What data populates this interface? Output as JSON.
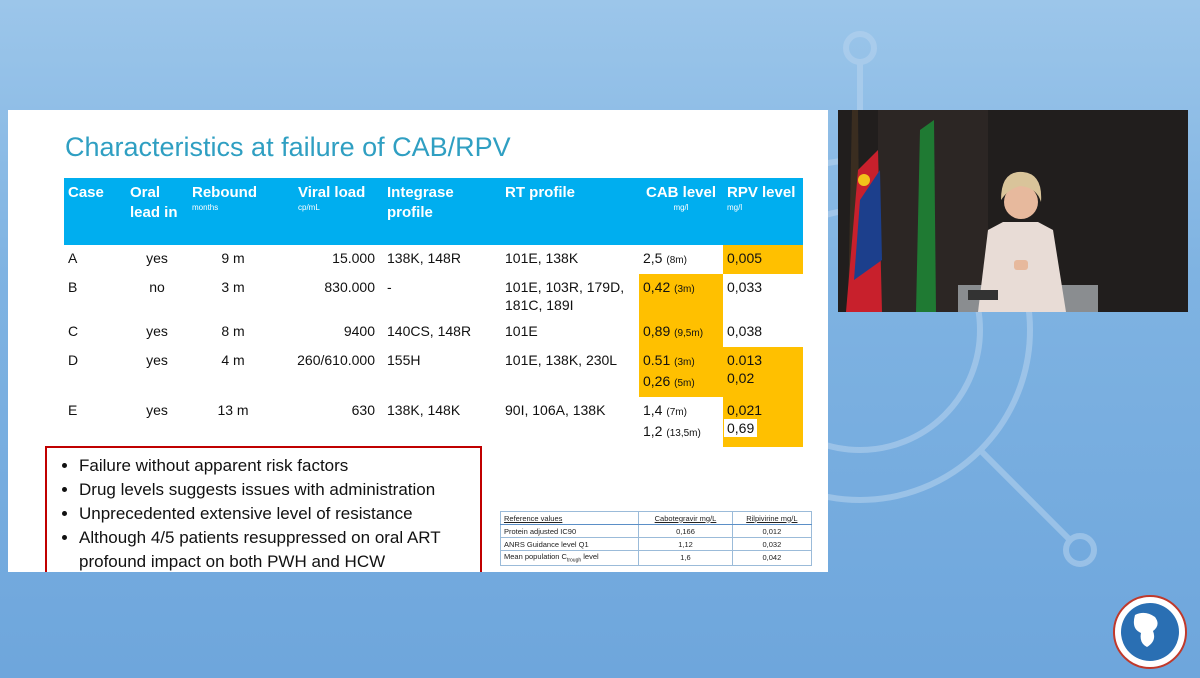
{
  "slide": {
    "title": "Characteristics at failure of CAB/RPV",
    "table": {
      "headers": [
        {
          "text": "Case"
        },
        {
          "text": "Oral lead in"
        },
        {
          "text": "Rebound",
          "unit": "months"
        },
        {
          "text": "Viral load",
          "unit": "cp/mL"
        },
        {
          "text": "Integrase profile"
        },
        {
          "text": "RT profile"
        },
        {
          "text": "CAB level",
          "unit": "mg/l"
        },
        {
          "text": "RPV level",
          "unit": "mg/l"
        }
      ],
      "rows": [
        [
          [
            "A"
          ],
          [
            "yes"
          ],
          [
            "9 m"
          ],
          [
            "15.000"
          ],
          [
            "138K, 148R"
          ],
          [
            "101E, 138K"
          ],
          [
            {
              "value": "2,5",
              "note": "(8m)"
            }
          ],
          [
            "0,005"
          ]
        ],
        [
          [
            "B"
          ],
          [
            "no"
          ],
          [
            "3 m"
          ],
          [
            "830.000"
          ],
          [
            "-"
          ],
          [
            "101E, 103R, 179D, 181C, 189I"
          ],
          [
            {
              "value": "0,42",
              "note": "(3m)"
            }
          ],
          [
            "0,033"
          ]
        ],
        [
          [
            "C"
          ],
          [
            "yes"
          ],
          [
            "8 m"
          ],
          [
            "9400"
          ],
          [
            "140CS, 148R"
          ],
          [
            "101E"
          ],
          [
            {
              "value": "0,89",
              "note": "(9,5m)"
            }
          ],
          [
            "0,038"
          ]
        ],
        [
          [
            "D"
          ],
          [
            "yes"
          ],
          [
            "4 m"
          ],
          [
            "260/610.000"
          ],
          [
            "155H"
          ],
          [
            "101E, 138K, 230L"
          ],
          [
            {
              "value": "0.51",
              "note": "(3m)"
            },
            {
              "value": "0,26",
              "note": "(5m)"
            }
          ],
          [
            "0.013",
            "0,02"
          ]
        ],
        [
          [
            "E"
          ],
          [
            "yes"
          ],
          [
            "13 m"
          ],
          [
            "630"
          ],
          [
            "138K, 148K"
          ],
          [
            "90I, 106A, 138K"
          ],
          [
            {
              "value": "1,4",
              "note": "(7m)"
            },
            {
              "value": "1,2",
              "note": "(13,5m)"
            }
          ],
          [
            "0,021",
            "0,69"
          ]
        ]
      ]
    },
    "bullets": [
      "Failure without apparent risk factors",
      "Drug levels suggests issues with administration",
      "Unprecedented extensive level of resistance",
      "Although 4/5 patients resuppressed on oral ART profound impact on both PWH and HCW"
    ],
    "reference": {
      "headers": [
        "Reference values",
        "Cabotegravir mg/L",
        "Rilpivirine mg/L"
      ],
      "rows": [
        [
          {
            "text": "Protein adjusted IC90"
          },
          {
            "text": "0,166"
          },
          {
            "text": "0,012"
          }
        ],
        [
          {
            "text": "ANRS Guidance level Q1"
          },
          {
            "text": "1,12"
          },
          {
            "text": "0,032"
          }
        ],
        [
          {
            "text": "Mean population C",
            "sub": "trough",
            "suffix": " level"
          },
          {
            "text": "1,6"
          },
          {
            "text": "0,042"
          }
        ]
      ]
    }
  }
}
